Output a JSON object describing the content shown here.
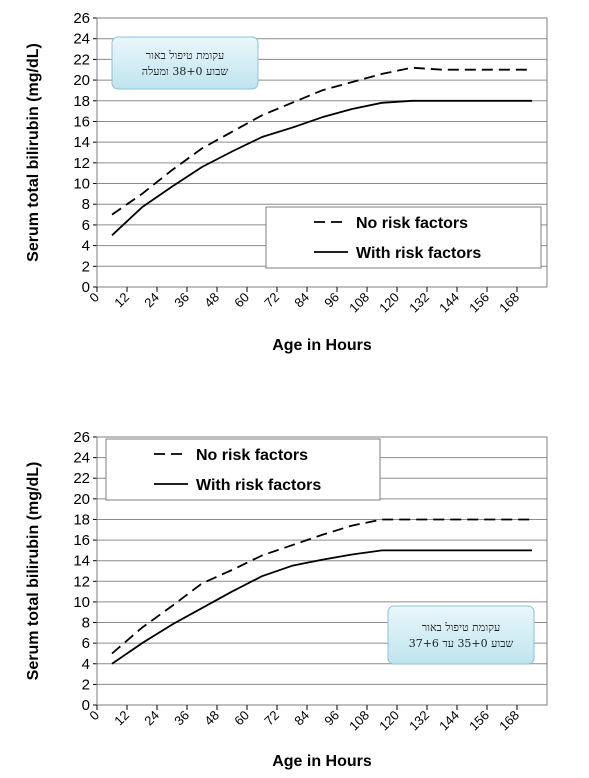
{
  "chart_data": [
    {
      "type": "line",
      "xlabel": "Age in Hours",
      "ylabel": "Serum total bilirubin (mg/dL)",
      "xlim": [
        0,
        180
      ],
      "ylim": [
        0,
        26
      ],
      "x_ticks": [
        0,
        12,
        24,
        36,
        48,
        60,
        72,
        84,
        96,
        108,
        120,
        132,
        144,
        156,
        168
      ],
      "y_ticks": [
        0,
        2,
        4,
        6,
        8,
        10,
        12,
        14,
        16,
        18,
        20,
        22,
        24,
        26
      ],
      "grid": "horizontal",
      "legend_position": "bottom-right",
      "note": {
        "position": "top-left",
        "lines": [
          "עקומת טיפול באור",
          "שבוע 38+0 ומעלה"
        ]
      },
      "series": [
        {
          "name": "No risk factors",
          "style": "dashed",
          "x": [
            6,
            18,
            30,
            42,
            54,
            66,
            78,
            90,
            102,
            114,
            126,
            138,
            150,
            162,
            174
          ],
          "y": [
            7,
            9,
            11.3,
            13.4,
            15,
            16.6,
            17.8,
            19,
            19.8,
            20.6,
            21.2,
            21,
            21,
            21,
            21
          ]
        },
        {
          "name": "With risk factors",
          "style": "solid",
          "x": [
            6,
            18,
            30,
            42,
            54,
            66,
            78,
            90,
            102,
            114,
            126,
            138,
            150,
            162,
            174
          ],
          "y": [
            5,
            7.7,
            9.7,
            11.6,
            13.1,
            14.5,
            15.4,
            16.4,
            17.2,
            17.8,
            18,
            18,
            18,
            18,
            18
          ]
        }
      ]
    },
    {
      "type": "line",
      "xlabel": "Age in Hours",
      "ylabel": "Serum total bilirubin (mg/dL)",
      "xlim": [
        0,
        180
      ],
      "ylim": [
        0,
        26
      ],
      "x_ticks": [
        0,
        12,
        24,
        36,
        48,
        60,
        72,
        84,
        96,
        108,
        120,
        132,
        144,
        156,
        168
      ],
      "y_ticks": [
        0,
        2,
        4,
        6,
        8,
        10,
        12,
        14,
        16,
        18,
        20,
        22,
        24,
        26
      ],
      "grid": "horizontal",
      "legend_position": "top-left",
      "note": {
        "position": "bottom-right",
        "lines": [
          "עקומת טיפול באור",
          "שבוע 35+0 עד 37+6"
        ]
      },
      "series": [
        {
          "name": "No risk factors",
          "style": "dashed",
          "x": [
            6,
            18,
            30,
            42,
            54,
            66,
            78,
            90,
            102,
            114,
            126,
            138,
            150,
            162,
            174
          ],
          "y": [
            5,
            7.5,
            9.6,
            11.8,
            13.1,
            14.5,
            15.5,
            16.5,
            17.4,
            18,
            18,
            18,
            18,
            18,
            18
          ]
        },
        {
          "name": "With risk factors",
          "style": "solid",
          "x": [
            6,
            18,
            30,
            42,
            54,
            66,
            78,
            90,
            102,
            114,
            126,
            138,
            150,
            162,
            174
          ],
          "y": [
            4,
            6,
            7.8,
            9.4,
            11,
            12.5,
            13.5,
            14.1,
            14.6,
            15,
            15,
            15,
            15,
            15,
            15
          ]
        }
      ]
    }
  ]
}
